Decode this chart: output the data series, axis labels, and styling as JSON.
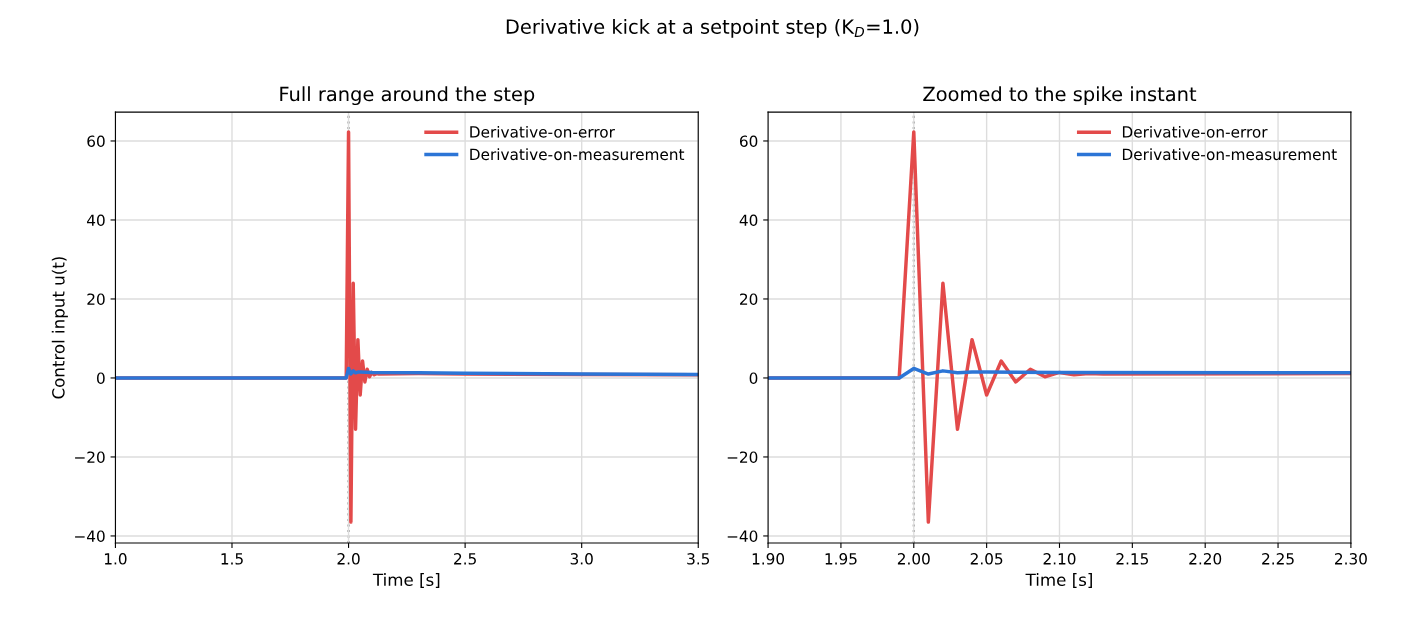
{
  "chart_data": [
    {
      "type": "line",
      "title": "Full range around the step",
      "annotations": [
        "Derivative kick at a setpoint step (K$_{D}$=1.0)"
      ],
      "xlabel": "Time [s]",
      "ylabel": "Control input u(t)",
      "xlim": [
        1.0,
        3.5
      ],
      "xticks": [
        {
          "value": 1.0,
          "label": "1.0"
        },
        1.5,
        {
          "value": 2.0,
          "label": "2.0"
        },
        2.5,
        {
          "value": 3.0,
          "label": "3.0"
        },
        3.5
      ],
      "ylim": [
        -41.8,
        67.3
      ],
      "yticks": [
        -40,
        -20,
        0,
        20,
        40,
        60
      ],
      "grid": true,
      "legend": "top right",
      "ref_lines": [
        {
          "axis": "x",
          "value": 2.0,
          "color": "#808080",
          "line_style": "dotted"
        }
      ],
      "series": [
        {
          "name": "Derivative-on-error",
          "color": "#e34a4a",
          "x": [
            1.0,
            1.99,
            2.0,
            2.01,
            2.02,
            2.03,
            2.04,
            2.05,
            2.06,
            2.07,
            2.08,
            2.09,
            2.1,
            2.11,
            2.12,
            2.13,
            2.3,
            2.5,
            3.0,
            3.5
          ],
          "values": [
            0,
            0,
            62.3,
            -36.5,
            24,
            -13,
            9.7,
            -4.3,
            4.3,
            -1,
            2.2,
            0.3,
            1.4,
            0.8,
            1.1,
            1.0,
            1.1,
            1.0,
            0.9,
            0.8
          ]
        },
        {
          "name": "Derivative-on-measurement",
          "color": "#2c75d6",
          "x": [
            1.0,
            1.99,
            2.0,
            2.01,
            2.02,
            2.03,
            2.04,
            2.05,
            2.1,
            2.3,
            2.5,
            3.0,
            3.5
          ],
          "values": [
            0,
            0,
            2.4,
            1.0,
            1.8,
            1.3,
            1.5,
            1.5,
            1.4,
            1.3,
            1.2,
            1.0,
            0.9
          ]
        }
      ]
    },
    {
      "type": "line",
      "title": "Zoomed to the spike instant",
      "xlabel": "Time [s]",
      "xlim": [
        1.9,
        2.3
      ],
      "xticks": [
        {
          "value": 1.9,
          "label": "1.90"
        },
        {
          "value": 1.95,
          "label": "1.95"
        },
        {
          "value": 2.0,
          "label": "2.00"
        },
        {
          "value": 2.05,
          "label": "2.05"
        },
        {
          "value": 2.1,
          "label": "2.10"
        },
        {
          "value": 2.15,
          "label": "2.15"
        },
        {
          "value": 2.2,
          "label": "2.20"
        },
        {
          "value": 2.25,
          "label": "2.25"
        },
        {
          "value": 2.3,
          "label": "2.30"
        }
      ],
      "ylim": [
        -41.8,
        67.3
      ],
      "yticks": [
        -40,
        -20,
        0,
        20,
        40,
        60
      ],
      "grid": true,
      "legend": "top right",
      "ref_lines": [
        {
          "axis": "x",
          "value": 2.0,
          "color": "#808080",
          "line_style": "dotted"
        }
      ],
      "series": [
        {
          "name": "Derivative-on-error",
          "color": "#e34a4a",
          "x": [
            1.9,
            1.99,
            2.0,
            2.01,
            2.02,
            2.03,
            2.04,
            2.05,
            2.06,
            2.07,
            2.08,
            2.09,
            2.1,
            2.11,
            2.12,
            2.13,
            2.3
          ],
          "values": [
            0,
            0,
            62.3,
            -36.5,
            24,
            -13,
            9.7,
            -4.3,
            4.3,
            -1,
            2.2,
            0.3,
            1.4,
            0.8,
            1.1,
            1.0,
            1.1
          ]
        },
        {
          "name": "Derivative-on-measurement",
          "color": "#2c75d6",
          "x": [
            1.9,
            1.99,
            2.0,
            2.01,
            2.02,
            2.03,
            2.04,
            2.05,
            2.1,
            2.3
          ],
          "values": [
            0,
            0,
            2.4,
            1.0,
            1.8,
            1.3,
            1.5,
            1.5,
            1.4,
            1.3
          ]
        }
      ]
    }
  ]
}
